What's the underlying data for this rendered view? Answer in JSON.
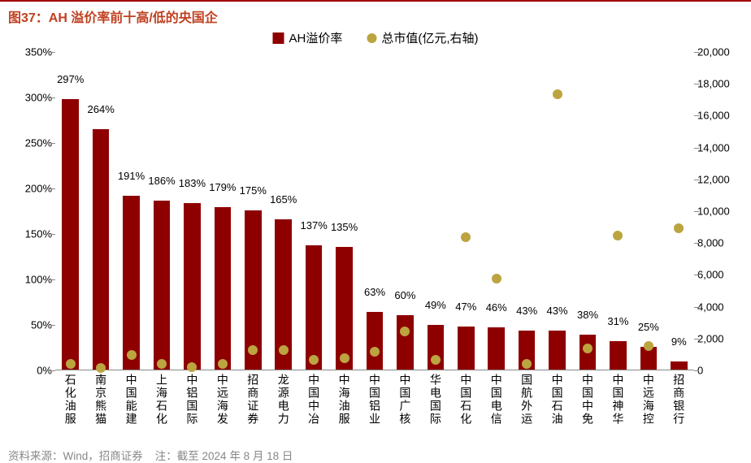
{
  "title": "图37：AH 溢价率前十高/低的央国企",
  "legend": {
    "series1": "AH溢价率",
    "series2": "总市值(亿元,右轴)"
  },
  "footer_source": "资料来源：Wind，招商证券",
  "footer_note": "注：截至 2024 年 8 月 18 日",
  "chart": {
    "type": "bar+scatter-dual-axis",
    "bar_color": "#8e0000",
    "dot_color": "#bca440",
    "background_color": "#ffffff",
    "axis_color": "#888888",
    "text_color": "#000000",
    "bar_width_ratio": 0.55,
    "left_axis": {
      "min": 0,
      "max": 350,
      "step": 50,
      "suffix": "%"
    },
    "right_axis": {
      "min": 0,
      "max": 20000,
      "step": 2000,
      "format": "comma"
    },
    "categories": [
      "石化油服",
      "南京熊猫",
      "中国能建",
      "上海石化",
      "中铝国际",
      "中远海发",
      "招商证券",
      "龙源电力",
      "中国中冶",
      "中海油服",
      "中国铝业",
      "中国广核",
      "华电国际",
      "中国石化",
      "中国电信",
      "国航外运",
      "中国石油",
      "中国中免",
      "中国神华",
      "中远海控",
      "招商银行"
    ],
    "premium_pct": [
      297,
      264,
      191,
      186,
      183,
      179,
      175,
      165,
      137,
      135,
      63,
      60,
      49,
      47,
      46,
      43,
      43,
      38,
      31,
      25,
      9
    ],
    "premium_labels": [
      "297%",
      "264%",
      "191%",
      "186%",
      "183%",
      "179%",
      "175%",
      "165%",
      "137%",
      "135%",
      "63%",
      "60%",
      "49%",
      "47%",
      "46%",
      "43%",
      "43%",
      "38%",
      "31%",
      "25%",
      "9%"
    ],
    "market_cap": [
      350,
      100,
      900,
      350,
      150,
      350,
      1250,
      1200,
      600,
      700,
      1100,
      2400,
      600,
      8300,
      5700,
      350,
      17300,
      1350,
      8400,
      1500,
      8900
    ]
  }
}
